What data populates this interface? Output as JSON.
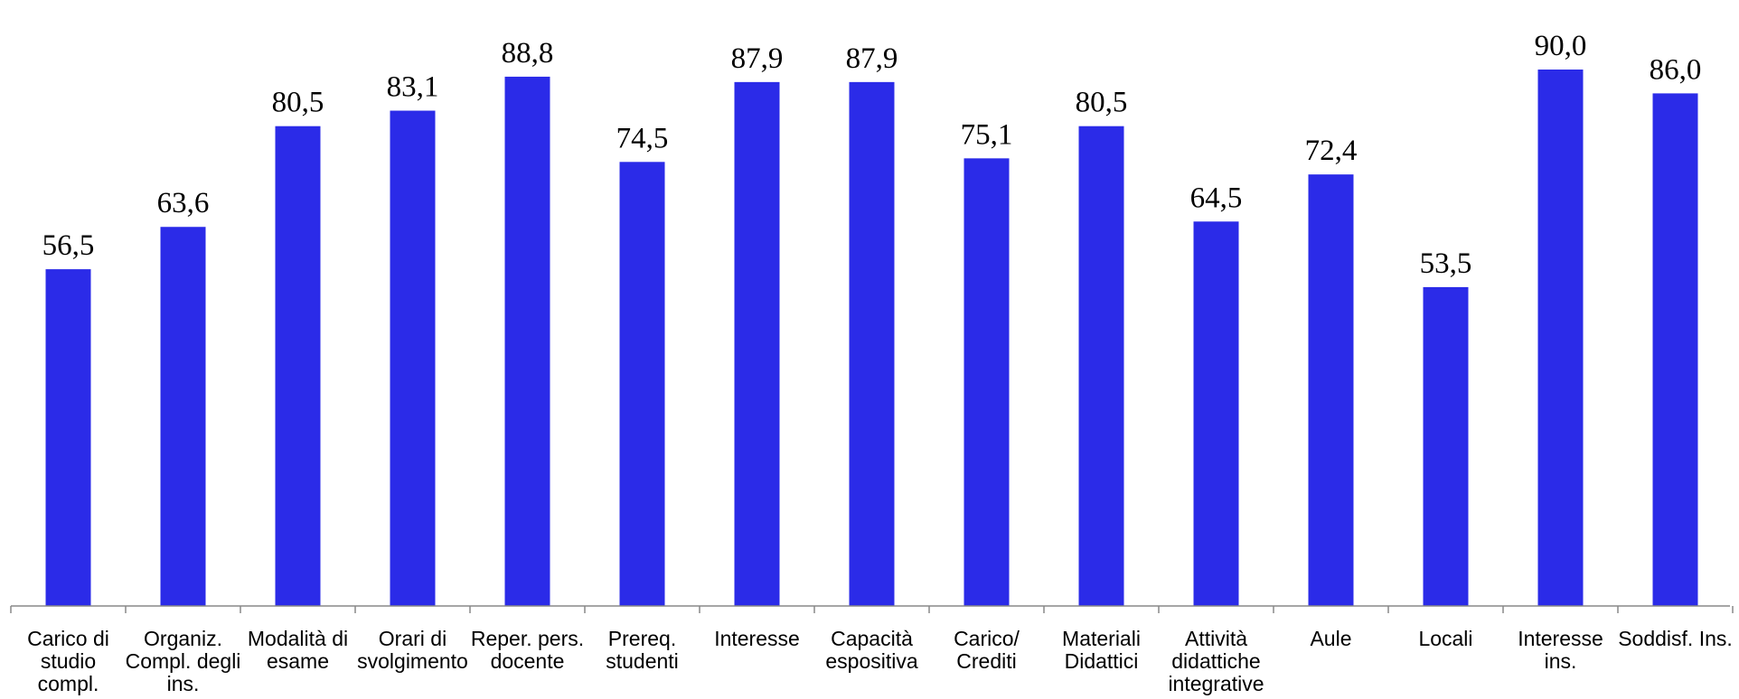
{
  "chart_data": {
    "type": "bar",
    "categories": [
      [
        "Carico di",
        "studio",
        "compl."
      ],
      [
        "Organiz.",
        "Compl. degli",
        "ins."
      ],
      [
        "Modalità di",
        "esame"
      ],
      [
        "Orari di",
        "svolgimento"
      ],
      [
        "Reper. pers.",
        "docente"
      ],
      [
        "Prereq.",
        "studenti"
      ],
      [
        "Interesse"
      ],
      [
        "Capacità",
        "espositiva"
      ],
      [
        "Carico/",
        "Crediti"
      ],
      [
        "Materiali",
        "Didattici"
      ],
      [
        "Attività",
        "didattiche",
        "integrative"
      ],
      [
        "Aule"
      ],
      [
        "Locali"
      ],
      [
        "Interesse",
        "ins."
      ],
      [
        "Soddisf. Ins."
      ]
    ],
    "values": [
      56.5,
      63.6,
      80.5,
      83.1,
      88.8,
      74.5,
      87.9,
      87.9,
      75.1,
      80.5,
      64.5,
      72.4,
      53.5,
      90.0,
      86.0
    ],
    "value_labels": [
      "56,5",
      "63,6",
      "80,5",
      "83,1",
      "88,8",
      "74,5",
      "87,9",
      "87,9",
      "75,1",
      "80,5",
      "64,5",
      "72,4",
      "53,5",
      "90,0",
      "86,0"
    ],
    "ylim": [
      0,
      100
    ],
    "grid": false,
    "legend": "none",
    "bar_color": "#2b2be8"
  }
}
